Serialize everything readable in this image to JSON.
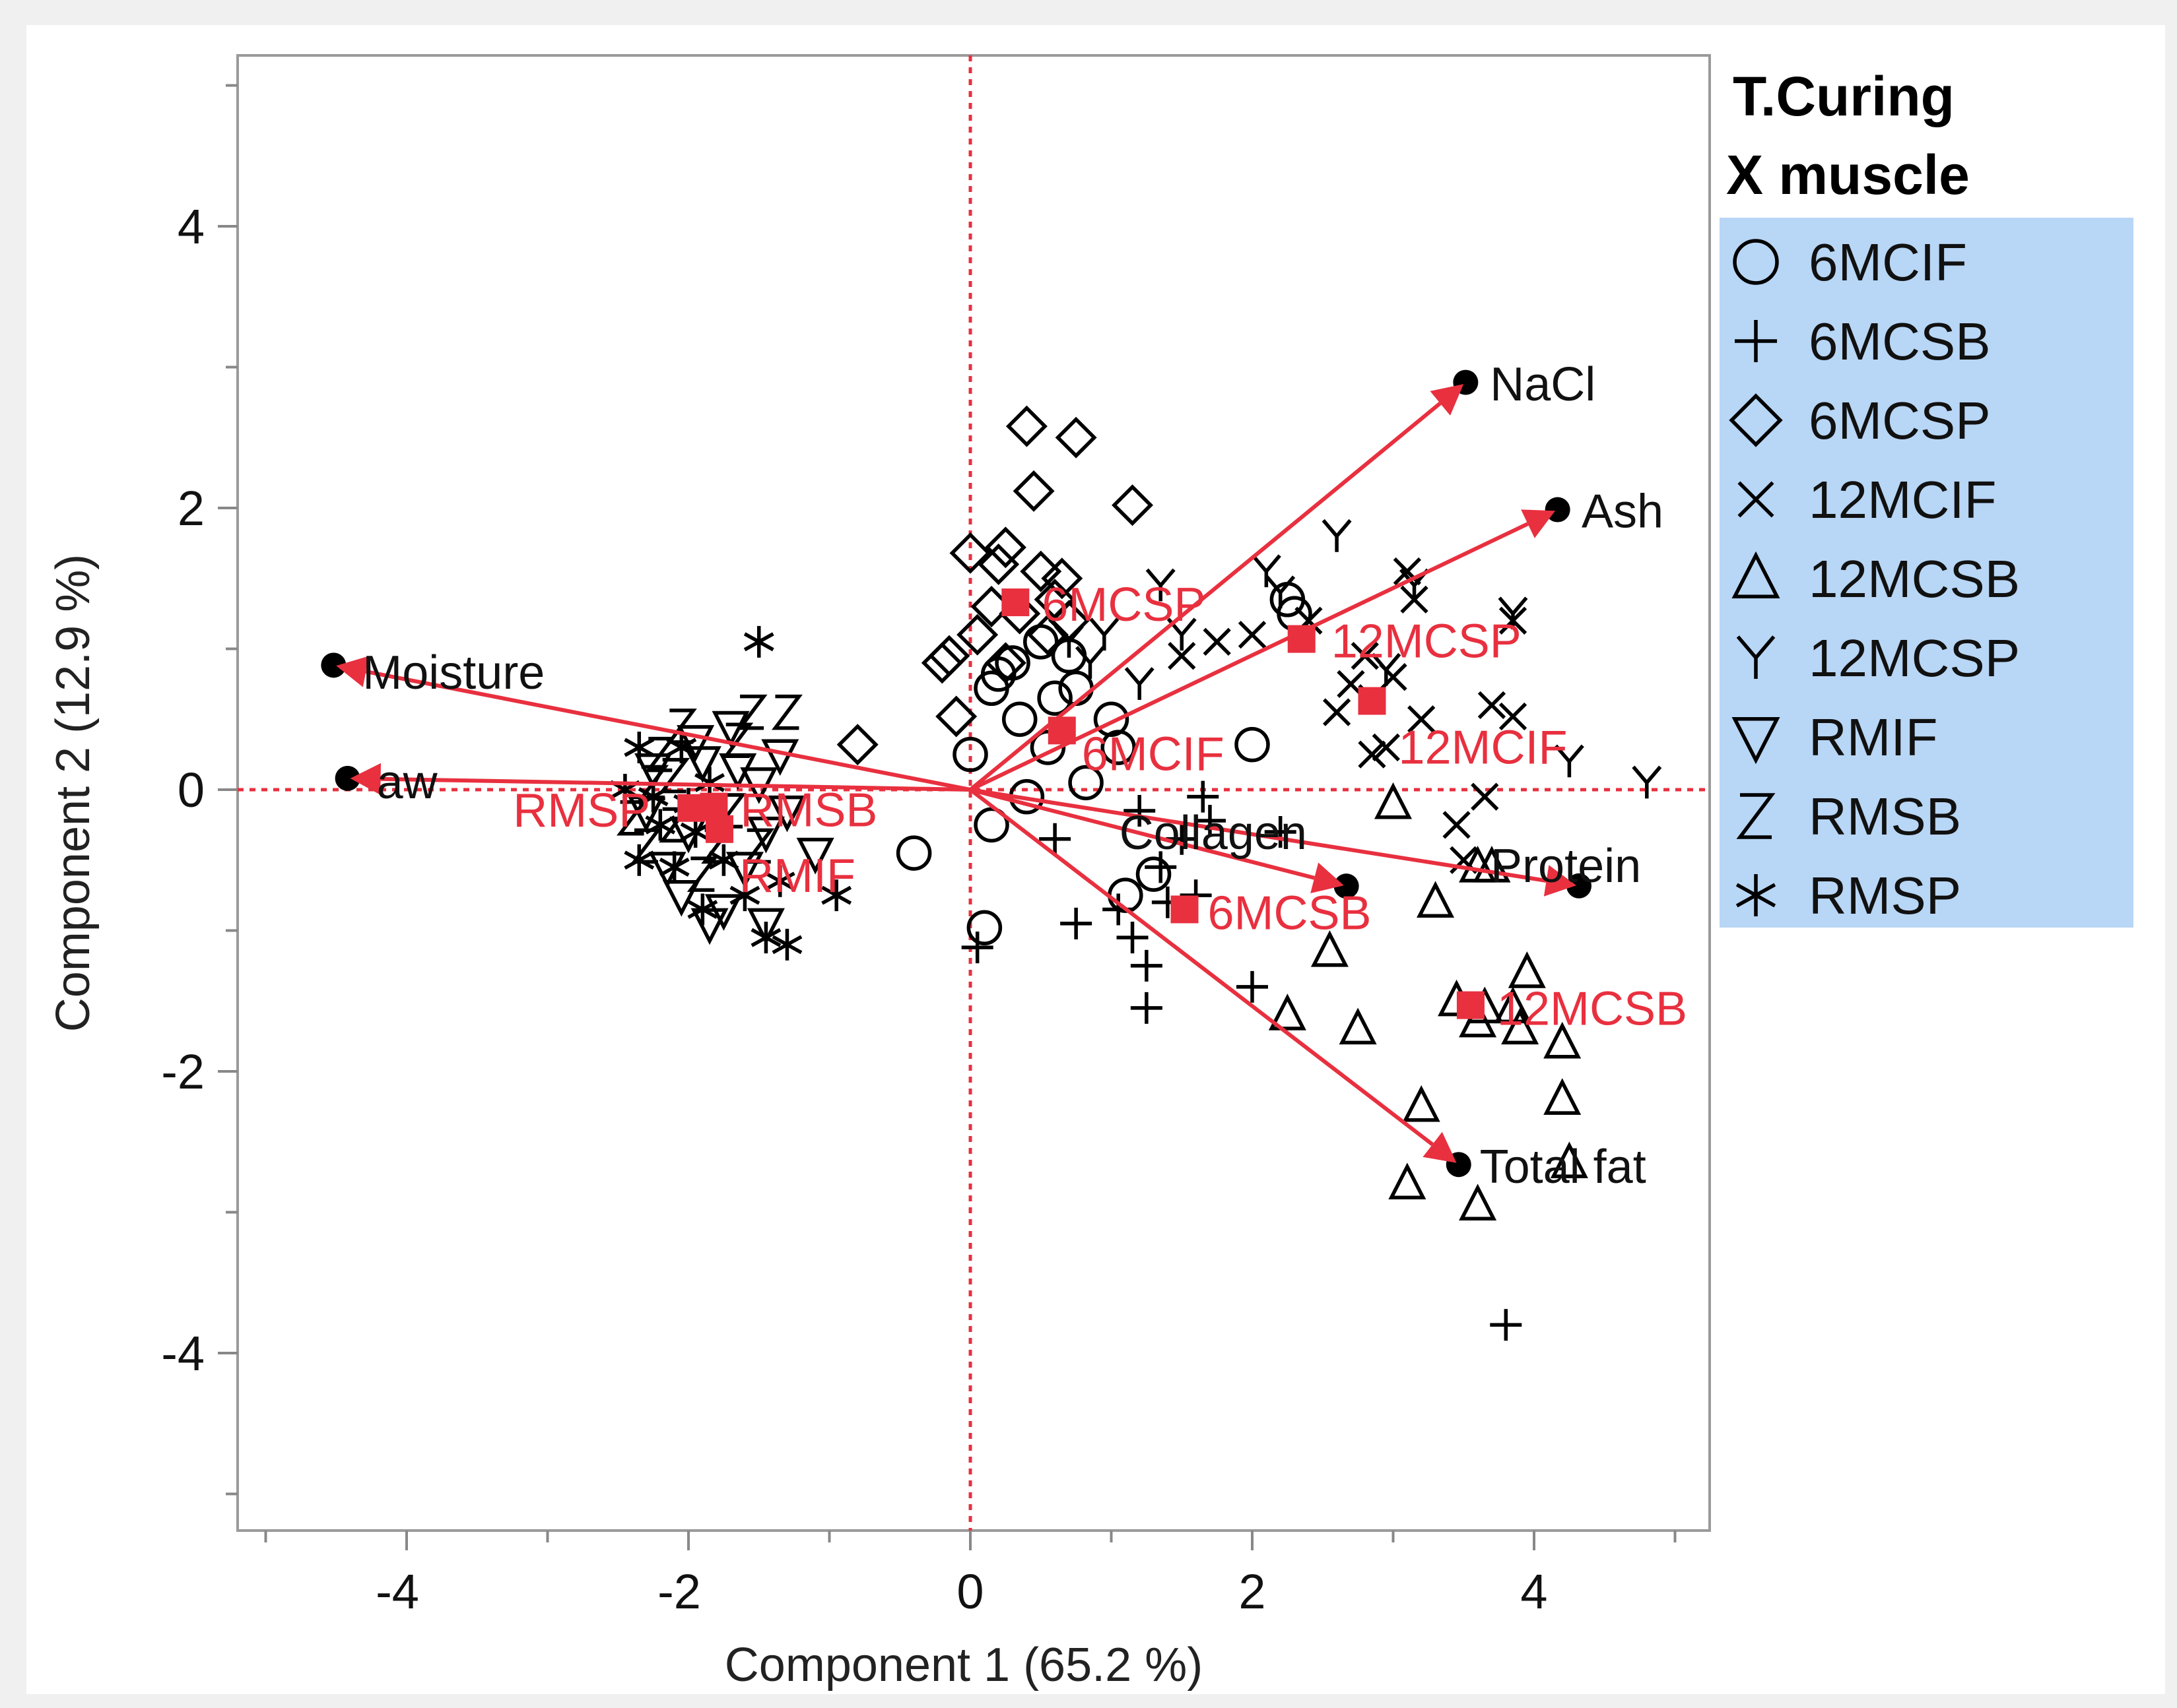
{
  "chart_data": {
    "type": "scatter",
    "subtype": "pca-biplot",
    "title": "",
    "xlabel": "Component 1  (65.2 %)",
    "ylabel": "Component 2  (12.9 %)",
    "xlim": [
      -5.2,
      5.2
    ],
    "ylim": [
      -5.2,
      5.2
    ],
    "x_ticks": [
      -4,
      -2,
      0,
      2,
      4
    ],
    "y_ticks": [
      -4,
      -2,
      0,
      2,
      4
    ],
    "x_minor_step": 1,
    "y_minor_step": 1,
    "grid": false,
    "reference_lines": {
      "x": 0,
      "y": 0,
      "color": "#e8303f",
      "style": "dotted"
    },
    "legend": {
      "placement": "right",
      "title_line1": "T.Curing",
      "title_line2": "X muscle",
      "background": "#b8d6f5",
      "entries": [
        {
          "name": "6MCIF",
          "marker": "circle"
        },
        {
          "name": "6MCSB",
          "marker": "plus"
        },
        {
          "name": "6MCSP",
          "marker": "diamond"
        },
        {
          "name": "12MCIF",
          "marker": "x"
        },
        {
          "name": "12MCSB",
          "marker": "triangle-up"
        },
        {
          "name": "12MCSP",
          "marker": "Y"
        },
        {
          "name": "RMIF",
          "marker": "triangle-down"
        },
        {
          "name": "RMSB",
          "marker": "Z"
        },
        {
          "name": "RMSP",
          "marker": "star"
        }
      ]
    },
    "colors": {
      "red": "#e8303f",
      "black": "#000000",
      "frame": "#999999",
      "panel": "#ffffff"
    },
    "loadings": [
      {
        "name": "NaCl",
        "x": 3.5,
        "y": 2.88
      },
      {
        "name": "Ash",
        "x": 4.15,
        "y": 1.98
      },
      {
        "name": "Moisture",
        "x": -4.5,
        "y": 0.88
      },
      {
        "name": "aw",
        "x": -4.4,
        "y": 0.08
      },
      {
        "name": "Protein",
        "x": 4.3,
        "y": -0.68
      },
      {
        "name": "Collagen",
        "x": 2.65,
        "y": -0.68
      },
      {
        "name": "Total fat",
        "x": 3.45,
        "y": -2.65
      }
    ],
    "centroids": [
      {
        "name": "6MCSP",
        "x": 0.32,
        "y": 1.33
      },
      {
        "name": "12MCSP",
        "x": 2.35,
        "y": 1.07
      },
      {
        "name": "12MCIF",
        "x": 2.85,
        "y": 0.63
      },
      {
        "name": "6MCIF",
        "x": 0.65,
        "y": 0.42
      },
      {
        "name": "RMSP",
        "x": -1.98,
        "y": -0.13
      },
      {
        "name": "RMSB",
        "x": -1.82,
        "y": -0.12
      },
      {
        "name": "RMIF",
        "x": -1.78,
        "y": -0.28
      },
      {
        "name": "6MCSB",
        "x": 1.52,
        "y": -0.85
      },
      {
        "name": "12MCSB",
        "x": 3.55,
        "y": -1.53
      }
    ],
    "series": [
      {
        "name": "6MCIF",
        "points": [
          [
            0.0,
            0.25
          ],
          [
            0.15,
            -0.25
          ],
          [
            0.1,
            -0.98
          ],
          [
            0.4,
            -0.05
          ],
          [
            0.82,
            0.05
          ],
          [
            1.05,
            0.3
          ],
          [
            2.0,
            0.32
          ],
          [
            1.1,
            -0.75
          ],
          [
            1.3,
            -0.6
          ],
          [
            0.15,
            0.72
          ],
          [
            0.3,
            0.9
          ],
          [
            0.5,
            1.05
          ],
          [
            0.7,
            0.95
          ],
          [
            0.35,
            0.5
          ],
          [
            0.6,
            0.65
          ],
          [
            1.0,
            0.5
          ],
          [
            -0.4,
            -0.45
          ],
          [
            0.75,
            0.72
          ],
          [
            0.2,
            0.82
          ],
          [
            2.25,
            1.35
          ],
          [
            2.3,
            1.25
          ],
          [
            0.55,
            0.3
          ]
        ]
      },
      {
        "name": "6MCSB",
        "points": [
          [
            0.05,
            -1.12
          ],
          [
            0.6,
            -0.35
          ],
          [
            0.75,
            -0.95
          ],
          [
            1.15,
            -1.05
          ],
          [
            1.25,
            -1.25
          ],
          [
            1.25,
            -1.55
          ],
          [
            1.5,
            -0.35
          ],
          [
            1.6,
            -0.75
          ],
          [
            1.7,
            -0.22
          ],
          [
            1.35,
            -0.55
          ],
          [
            2.0,
            -1.4
          ],
          [
            2.2,
            -0.3
          ],
          [
            1.65,
            -0.05
          ],
          [
            1.2,
            -0.15
          ],
          [
            3.8,
            -3.8
          ],
          [
            1.05,
            -0.85
          ],
          [
            1.4,
            -0.8
          ]
        ]
      },
      {
        "name": "6MCSP",
        "points": [
          [
            0.4,
            2.58
          ],
          [
            0.75,
            2.5
          ],
          [
            0.45,
            2.12
          ],
          [
            1.15,
            2.02
          ],
          [
            0.0,
            1.68
          ],
          [
            0.25,
            1.72
          ],
          [
            0.5,
            1.55
          ],
          [
            0.65,
            1.5
          ],
          [
            0.6,
            1.35
          ],
          [
            0.35,
            1.25
          ],
          [
            0.05,
            1.1
          ],
          [
            0.25,
            0.9
          ],
          [
            -0.2,
            0.9
          ],
          [
            -0.15,
            0.95
          ],
          [
            -0.1,
            0.52
          ],
          [
            -0.8,
            0.32
          ],
          [
            0.2,
            1.6
          ],
          [
            0.15,
            1.3
          ],
          [
            0.7,
            1.2
          ],
          [
            0.55,
            1.1
          ]
        ]
      },
      {
        "name": "12MCIF",
        "points": [
          [
            3.1,
            1.55
          ],
          [
            3.15,
            1.35
          ],
          [
            3.85,
            1.2
          ],
          [
            3.85,
            0.52
          ],
          [
            3.2,
            0.5
          ],
          [
            3.65,
            -0.05
          ],
          [
            3.45,
            -0.25
          ],
          [
            3.0,
            0.8
          ],
          [
            2.85,
            0.65
          ],
          [
            2.95,
            0.3
          ],
          [
            2.85,
            0.25
          ],
          [
            2.8,
            0.95
          ],
          [
            2.4,
            1.2
          ],
          [
            2.0,
            1.1
          ],
          [
            1.75,
            1.05
          ],
          [
            1.5,
            0.95
          ],
          [
            3.5,
            -0.5
          ],
          [
            2.7,
            0.75
          ],
          [
            3.7,
            0.6
          ],
          [
            2.6,
            0.55
          ]
        ]
      },
      {
        "name": "12MCSB",
        "points": [
          [
            3.0,
            -0.1
          ],
          [
            3.3,
            -0.8
          ],
          [
            3.6,
            -0.55
          ],
          [
            3.7,
            -0.55
          ],
          [
            2.55,
            -1.15
          ],
          [
            2.25,
            -1.6
          ],
          [
            2.75,
            -1.7
          ],
          [
            3.45,
            -1.5
          ],
          [
            3.65,
            -1.55
          ],
          [
            3.85,
            -1.55
          ],
          [
            3.95,
            -1.3
          ],
          [
            3.9,
            -1.7
          ],
          [
            4.2,
            -1.8
          ],
          [
            4.2,
            -2.2
          ],
          [
            3.2,
            -2.25
          ],
          [
            3.1,
            -2.8
          ],
          [
            3.6,
            -2.95
          ],
          [
            4.25,
            -2.65
          ],
          [
            3.6,
            -1.65
          ]
        ]
      },
      {
        "name": "12MCSP",
        "points": [
          [
            2.6,
            1.8
          ],
          [
            2.1,
            1.55
          ],
          [
            1.35,
            1.45
          ],
          [
            0.95,
            1.1
          ],
          [
            1.5,
            1.1
          ],
          [
            0.85,
            0.9
          ],
          [
            3.85,
            1.25
          ],
          [
            3.15,
            1.45
          ],
          [
            4.25,
            0.2
          ],
          [
            4.8,
            0.05
          ],
          [
            2.95,
            0.85
          ],
          [
            2.2,
            1.4
          ],
          [
            0.7,
            1.05
          ],
          [
            1.2,
            0.75
          ]
        ]
      },
      {
        "name": "RMIF",
        "points": [
          [
            -1.7,
            0.45
          ],
          [
            -1.35,
            0.25
          ],
          [
            -1.5,
            0.05
          ],
          [
            -1.45,
            -0.3
          ],
          [
            -1.1,
            -0.45
          ],
          [
            -1.6,
            -0.55
          ],
          [
            -1.75,
            -0.85
          ],
          [
            -1.85,
            -0.95
          ],
          [
            -2.05,
            -0.75
          ],
          [
            -2.15,
            -0.55
          ],
          [
            -2.0,
            -0.3
          ],
          [
            -2.25,
            0.15
          ],
          [
            -1.95,
            0.35
          ],
          [
            -1.65,
            0.15
          ],
          [
            -1.9,
            0.2
          ],
          [
            -2.3,
            -0.15
          ],
          [
            -1.45,
            -0.95
          ],
          [
            -1.3,
            -0.15
          ]
        ]
      },
      {
        "name": "RMSB",
        "points": [
          [
            -1.55,
            0.55
          ],
          [
            -1.3,
            0.55
          ],
          [
            -1.65,
            0.35
          ],
          [
            -2.05,
            0.45
          ],
          [
            -2.25,
            0.05
          ],
          [
            -2.1,
            -0.25
          ],
          [
            -1.8,
            -0.4
          ],
          [
            -1.9,
            -0.6
          ],
          [
            -2.3,
            -0.4
          ],
          [
            -2.4,
            -0.2
          ],
          [
            -2.2,
            0.25
          ],
          [
            -1.7,
            -0.15
          ],
          [
            -1.5,
            -0.4
          ],
          [
            -2.1,
            0.1
          ]
        ]
      },
      {
        "name": "RMSP",
        "points": [
          [
            -1.5,
            1.05
          ],
          [
            -1.3,
            -1.1
          ],
          [
            -1.45,
            -1.05
          ],
          [
            -0.95,
            -0.75
          ],
          [
            -2.35,
            -0.5
          ],
          [
            -2.0,
            -0.1
          ],
          [
            -2.2,
            -0.25
          ],
          [
            -1.85,
            0.05
          ],
          [
            -2.05,
            0.3
          ],
          [
            -2.35,
            0.3
          ],
          [
            -1.75,
            -0.5
          ],
          [
            -1.6,
            -0.75
          ],
          [
            -2.45,
            0.0
          ],
          [
            -1.95,
            -0.3
          ],
          [
            -2.1,
            -0.55
          ],
          [
            -2.25,
            -0.05
          ],
          [
            -1.9,
            -0.85
          ],
          [
            -1.35,
            -0.65
          ]
        ]
      }
    ]
  }
}
